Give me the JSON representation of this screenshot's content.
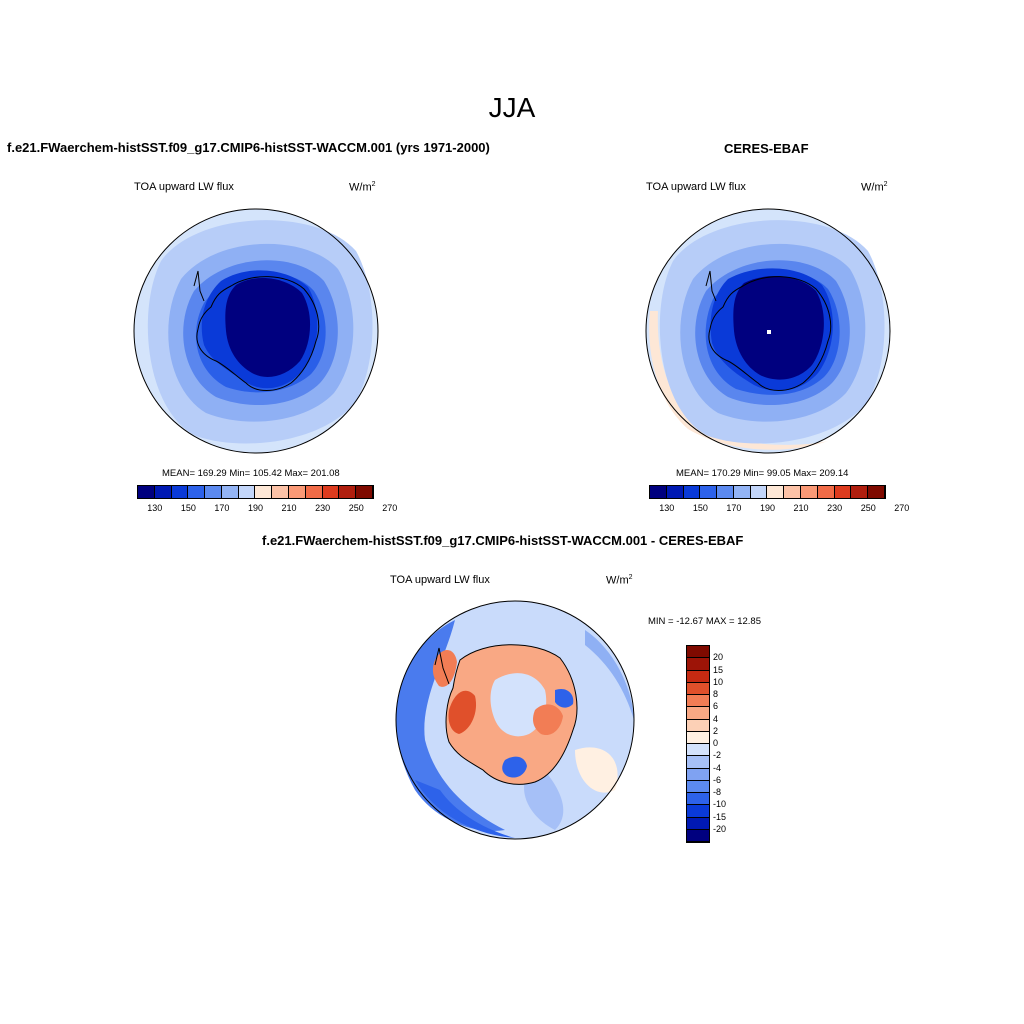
{
  "figure": {
    "title": "JJA",
    "units": "W/m",
    "units_sup": "2"
  },
  "colors": {
    "diverging_scale": [
      "#00007f",
      "#0019b3",
      "#0a3ad8",
      "#2d62ea",
      "#5c8af0",
      "#93b4f5",
      "#c3d6fa",
      "#fde7d6",
      "#fcc2a7",
      "#fa9976",
      "#f16b47",
      "#dd3b1e",
      "#b01e0e",
      "#7f0a00"
    ],
    "difference_scale": [
      "#00007f",
      "#0019b3",
      "#0a3ad8",
      "#2d62ea",
      "#5c8af0",
      "#7fa2f2",
      "#a6c0f7",
      "#d3e2fc",
      "#fff0e2",
      "#fcd0b6",
      "#f9a884",
      "#f27d55",
      "#e0502b",
      "#c52a12",
      "#9d1407",
      "#7f0a00"
    ]
  },
  "panels": {
    "model": {
      "header": "f.e21.FWaerchem-histSST.f09_g17.CMIP6-histSST-WACCM.001 (yrs 1971-2000)",
      "variable": "TOA upward LW flux",
      "stats": "MEAN= 169.29  Min= 105.42  Max= 201.08",
      "colorbar_ticks": [
        "130",
        "150",
        "170",
        "190",
        "210",
        "230",
        "250",
        "270"
      ]
    },
    "obs": {
      "header": "CERES-EBAF",
      "variable": "TOA upward LW flux",
      "stats": "MEAN= 170.29  Min=  99.05  Max= 209.14",
      "colorbar_ticks": [
        "130",
        "150",
        "170",
        "190",
        "210",
        "230",
        "250",
        "270"
      ]
    },
    "diff": {
      "header": "f.e21.FWaerchem-histSST.f09_g17.CMIP6-histSST-WACCM.001 - CERES-EBAF",
      "variable": "TOA upward LW flux",
      "stats": "MIN = -12.67 MAX =  12.85",
      "colorbar_ticks": [
        "20",
        "15",
        "10",
        "8",
        "6",
        "4",
        "2",
        "0",
        "-2",
        "-4",
        "-6",
        "-8",
        "-10",
        "-15",
        "-20"
      ]
    }
  }
}
